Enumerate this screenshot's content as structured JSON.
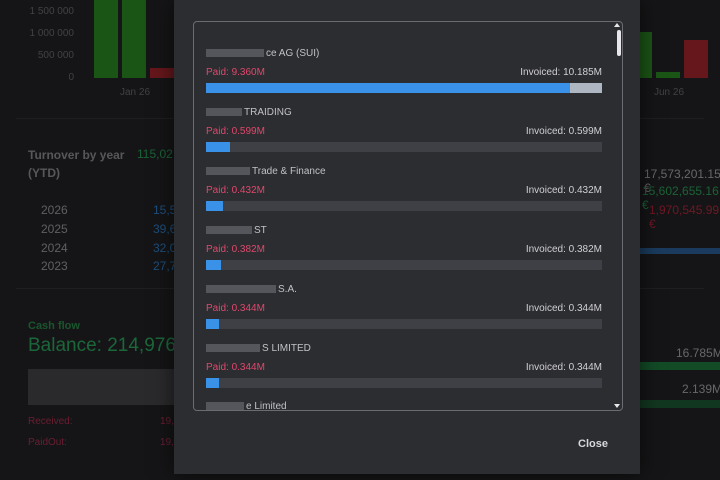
{
  "background": {
    "left_chart": {
      "ticks": [
        "1 500 000",
        "1 000 000",
        "500 000",
        "0"
      ],
      "month": "Jan 26"
    },
    "right_chart": {
      "month": "Jun 26"
    },
    "turnover": {
      "title_line1": "Turnover by year",
      "title_line2": "(YTD)",
      "total": "115,02",
      "years": [
        {
          "year": "2026",
          "value": "15,5"
        },
        {
          "year": "2025",
          "value": "39,6"
        },
        {
          "year": "2024",
          "value": "32,0"
        },
        {
          "year": "2023",
          "value": "27,7"
        }
      ],
      "right_values": [
        "17,573,201.15 €",
        "15,602,655.16 €",
        "1,970,545.99 €"
      ]
    },
    "cashflow": {
      "title": "Cash flow",
      "balance": "Balance: 214,976.",
      "received_label": "Received:",
      "received_value": "19,",
      "paidout_label": "PaidOut:",
      "paidout_value": "19,",
      "right_values": [
        "16.785M",
        "2.139M"
      ]
    },
    "colors": {
      "green": "#2d8a24",
      "red": "#a3262c",
      "blue": "#2f7fc8",
      "pink": "#a8304f"
    }
  },
  "modal": {
    "items": [
      {
        "name": "ce AG (SUI)",
        "paid": "Paid: 9.360M",
        "invoiced": "Invoiced: 10.185M",
        "paid_fraction": 0.919
      },
      {
        "name": "TRAIDING",
        "paid": "Paid: 0.599M",
        "invoiced": "Invoiced: 0.599M",
        "paid_fraction": 0.06
      },
      {
        "name": "Trade & Finance",
        "paid": "Paid: 0.432M",
        "invoiced": "Invoiced: 0.432M",
        "paid_fraction": 0.043
      },
      {
        "name": "ST",
        "paid": "Paid: 0.382M",
        "invoiced": "Invoiced: 0.382M",
        "paid_fraction": 0.038
      },
      {
        "name": "S.A.",
        "paid": "Paid: 0.344M",
        "invoiced": "Invoiced: 0.344M",
        "paid_fraction": 0.034
      },
      {
        "name": "S LIMITED",
        "paid": "Paid: 0.344M",
        "invoiced": "Invoiced: 0.344M",
        "paid_fraction": 0.034
      },
      {
        "name": "e Limited",
        "paid": "",
        "invoiced": "",
        "paid_fraction": 0
      }
    ],
    "close_label": "Close",
    "colors": {
      "paid_text": "#e0476d",
      "fill": "#3a91e8",
      "track": "#3f4045",
      "invoiced_track": "#aeb6c2"
    }
  }
}
